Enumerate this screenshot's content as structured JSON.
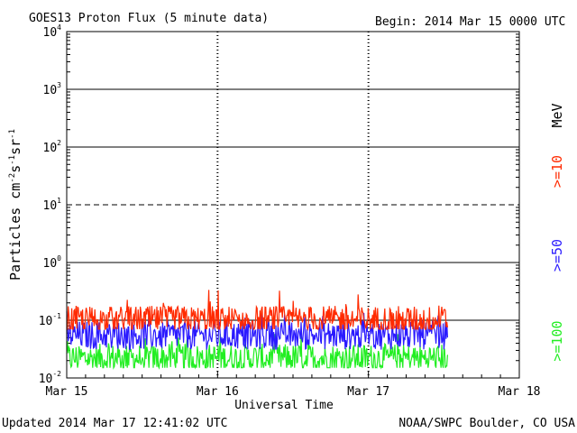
{
  "header": {
    "title": "GOES13 Proton Flux (5 minute data)",
    "begin": "Begin: 2014 Mar 15 0000 UTC"
  },
  "footer": {
    "updated": "Updated 2014 Mar 17 12:41:02 UTC",
    "source": "NOAA/SWPC Boulder, CO USA"
  },
  "chart_data": {
    "type": "line",
    "title": "GOES13 Proton Flux (5 minute data)",
    "xlabel": "Universal Time",
    "ylabel": "Particles cm-2s-1sr-1",
    "y_scale": "log",
    "ylim": [
      0.01,
      10000
    ],
    "xlim": [
      "2014-03-15 00:00",
      "2014-03-18 00:00"
    ],
    "x_ticks": [
      "Mar 15",
      "Mar 16",
      "Mar 17",
      "Mar 18"
    ],
    "y_ticks": [
      {
        "base": "10",
        "exp": "4"
      },
      {
        "base": "10",
        "exp": "3"
      },
      {
        "base": "10",
        "exp": "2"
      },
      {
        "base": "10",
        "exp": "1"
      },
      {
        "base": "10",
        "exp": "0"
      },
      {
        "base": "10",
        "exp": "-1"
      },
      {
        "base": "10",
        "exp": "-2"
      }
    ],
    "right_labels": [
      {
        "text": "MeV",
        "color": "#000000"
      },
      {
        "text": ">=10",
        "color": "#ff2a00"
      },
      {
        "text": ">=50",
        "color": "#2a1aff"
      },
      {
        "text": ">=100",
        "color": "#22ee22"
      }
    ],
    "data_end": "2014-03-17 12:40",
    "series": [
      {
        "name": ">=10",
        "color": "#ff2a00",
        "typical": 0.1,
        "min": 0.07,
        "max": 0.4
      },
      {
        "name": ">=50",
        "color": "#2a1aff",
        "typical": 0.055,
        "min": 0.03,
        "max": 0.15
      },
      {
        "name": ">=100",
        "color": "#22ee22",
        "typical": 0.022,
        "min": 0.015,
        "max": 0.06
      }
    ]
  }
}
